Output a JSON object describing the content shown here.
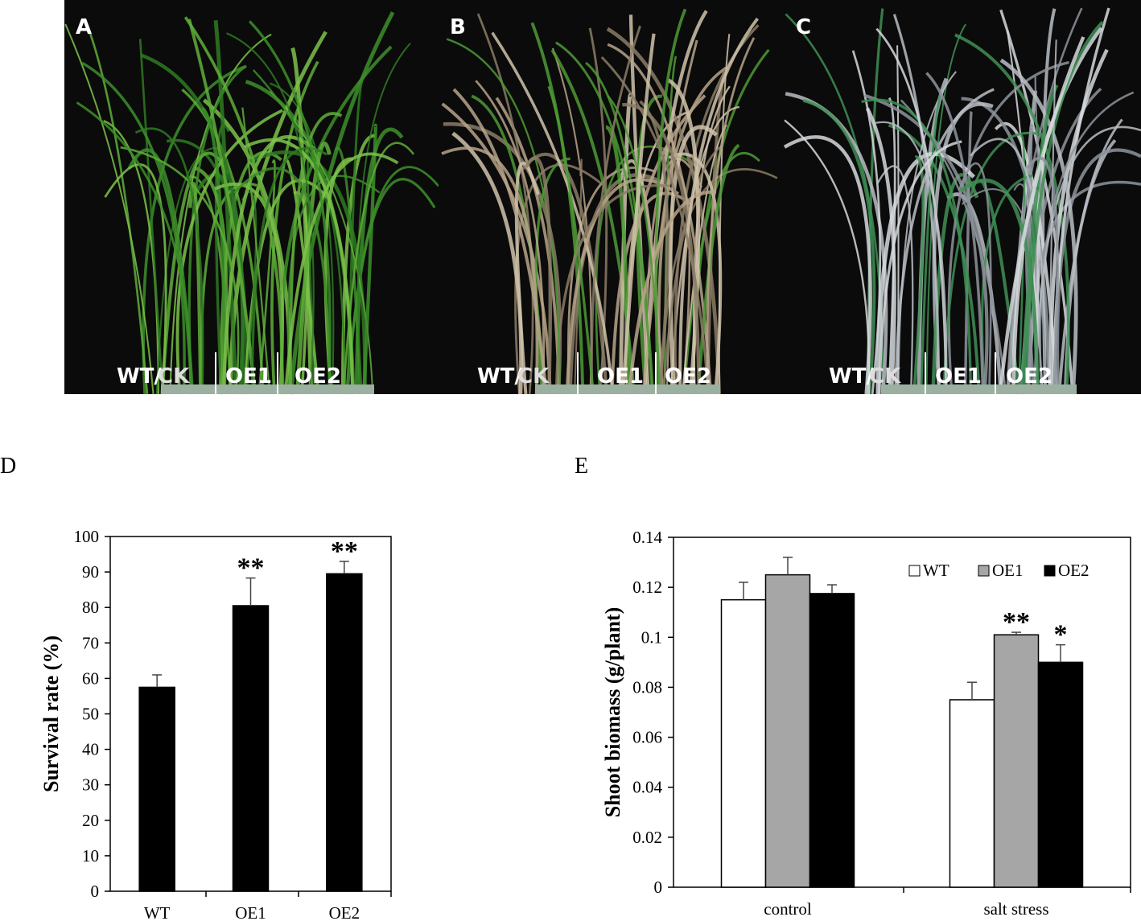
{
  "panels": [
    {
      "letter": "A",
      "labels": [
        "WT/",
        "CK",
        "OE1",
        "OE2"
      ]
    },
    {
      "letter": "B",
      "labels": [
        "WT/",
        "CK",
        "OE1",
        "OE2"
      ]
    },
    {
      "letter": "C",
      "labels": [
        "WT/",
        "CK",
        "OE1",
        "OE2"
      ]
    }
  ],
  "chart_data": [
    {
      "type": "bar",
      "panel_label": "D",
      "ylabel": "Survival rate (%)",
      "categories": [
        "WT",
        "OE1",
        "OE2"
      ],
      "values": [
        57.5,
        80.5,
        89.5
      ],
      "errors": [
        3.5,
        7.8,
        3.5
      ],
      "significance": [
        null,
        "**",
        "**"
      ],
      "color": "#000000",
      "ylim": [
        0,
        100
      ],
      "yticks": [
        0,
        10,
        20,
        30,
        40,
        50,
        60,
        70,
        80,
        90,
        100
      ]
    },
    {
      "type": "bar",
      "panel_label": "E",
      "ylabel": "Shoot biomass (g/plant)",
      "categories": [
        "control",
        "salt stress"
      ],
      "series": [
        {
          "name": "WT",
          "color": "#ffffff",
          "values": [
            0.115,
            0.075
          ],
          "errors": [
            0.007,
            0.007
          ],
          "significance": [
            null,
            null
          ]
        },
        {
          "name": "OE1",
          "color": "#a6a6a6",
          "values": [
            0.125,
            0.101
          ],
          "errors": [
            0.007,
            0.001
          ],
          "significance": [
            null,
            "**"
          ]
        },
        {
          "name": "OE2",
          "color": "#000000",
          "values": [
            0.1175,
            0.09
          ],
          "errors": [
            0.0035,
            0.007
          ],
          "significance": [
            null,
            "*"
          ]
        }
      ],
      "legend": "top-right",
      "ylim": [
        0,
        0.14
      ],
      "yticks": [
        0,
        0.02,
        0.04,
        0.06,
        0.08,
        0.1,
        0.12,
        0.14
      ]
    }
  ]
}
